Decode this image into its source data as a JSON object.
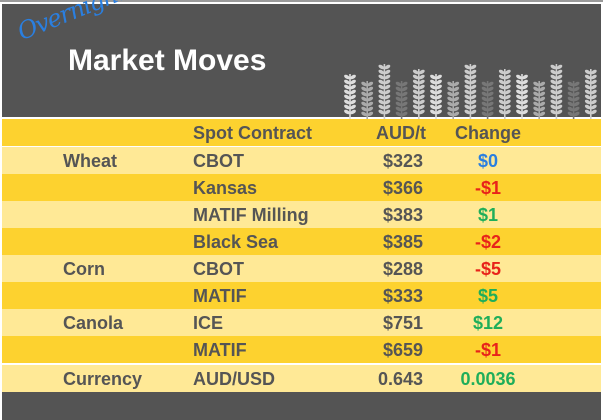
{
  "header": {
    "overline": "Overnight",
    "title": "Market Moves",
    "decor": "wheat-stalks-icon"
  },
  "columns": [
    "",
    "Spot Contract",
    "AUD/t",
    "Change"
  ],
  "colors": {
    "dark": "#545454",
    "yellow": "#fdd22f",
    "light": "#ffe996",
    "neutral": "#2a7fe0",
    "down": "#e8231a",
    "up": "#1fae5a"
  },
  "rows": [
    {
      "category": "Wheat",
      "contract": "CBOT",
      "price": "$323",
      "change": "$0",
      "dir": "neutral"
    },
    {
      "category": "",
      "contract": "Kansas",
      "price": "$366",
      "change": "-$1",
      "dir": "down"
    },
    {
      "category": "",
      "contract": "MATIF Milling",
      "price": "$383",
      "change": "$1",
      "dir": "up"
    },
    {
      "category": "",
      "contract": "Black Sea",
      "price": "$385",
      "change": "-$2",
      "dir": "down"
    },
    {
      "category": "Corn",
      "contract": "CBOT",
      "price": "$288",
      "change": "-$5",
      "dir": "down"
    },
    {
      "category": "",
      "contract": "MATIF",
      "price": "$333",
      "change": "$5",
      "dir": "up"
    },
    {
      "category": "Canola",
      "contract": "ICE",
      "price": "$751",
      "change": "$12",
      "dir": "up"
    },
    {
      "category": "",
      "contract": "MATIF",
      "price": "$659",
      "change": "-$1",
      "dir": "down"
    }
  ],
  "currency": {
    "category": "Currency",
    "contract": "AUD/USD",
    "price": "0.643",
    "change": "0.0036",
    "dir": "up"
  }
}
